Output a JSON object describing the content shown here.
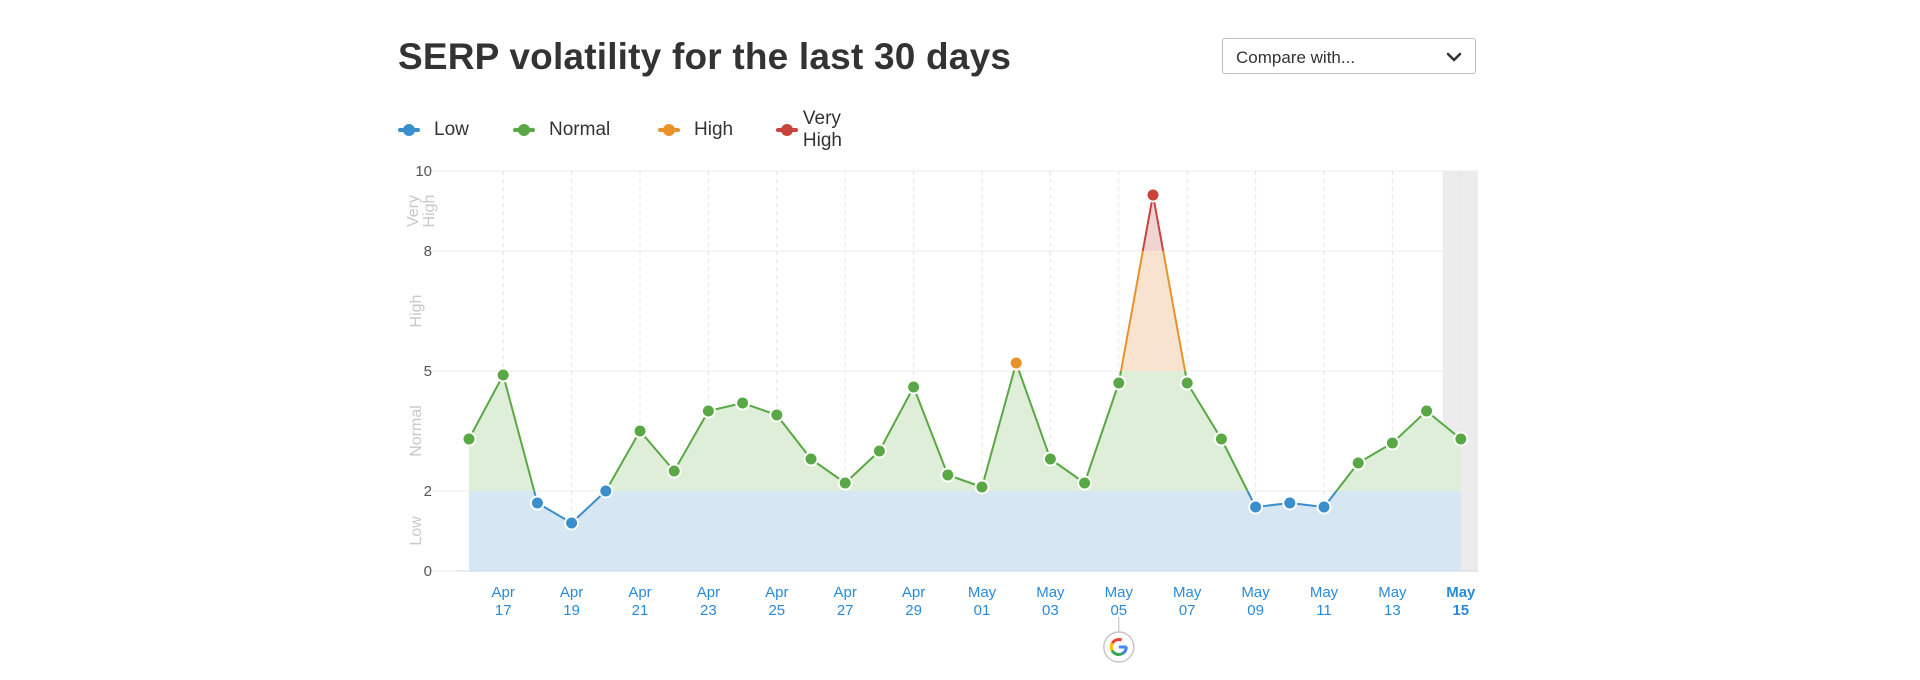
{
  "title": "SERP volatility for the last 30 days",
  "compare": {
    "label": "Compare with...",
    "icon": "chevron-down-icon"
  },
  "legend": [
    {
      "label": "Low",
      "color": "#3a8ecb"
    },
    {
      "label": "Normal",
      "color": "#5aa845"
    },
    {
      "label": "High",
      "color": "#e8922a"
    },
    {
      "label": "Very High",
      "color": "#c8433b"
    }
  ],
  "colors": {
    "low_fill": "#d6e7f3",
    "normal_fill": "#dfeed9",
    "high_fill": "#f8e3d0",
    "veryhigh_fill": "#f0d4d4",
    "low": "#3a8ecb",
    "normal": "#5aa845",
    "high": "#e8922a",
    "veryhigh": "#c8433b",
    "grid": "#ebebeb",
    "today_band": "#ececec"
  },
  "chart_data": {
    "type": "line",
    "y_ticks": [
      "0",
      "2",
      "5",
      "8",
      "10"
    ],
    "ylim": [
      0,
      10
    ],
    "band_labels": [
      "Low",
      "Normal",
      "High",
      "Very High"
    ],
    "x_tick_labels": [
      [
        "Apr",
        "17"
      ],
      [
        "Apr",
        "19"
      ],
      [
        "Apr",
        "21"
      ],
      [
        "Apr",
        "23"
      ],
      [
        "Apr",
        "25"
      ],
      [
        "Apr",
        "27"
      ],
      [
        "Apr",
        "29"
      ],
      [
        "May",
        "01"
      ],
      [
        "May",
        "03"
      ],
      [
        "May",
        "05"
      ],
      [
        "May",
        "07"
      ],
      [
        "May",
        "09"
      ],
      [
        "May",
        "11"
      ],
      [
        "May",
        "13"
      ],
      [
        "May",
        "15"
      ]
    ],
    "dates": [
      "Apr 16",
      "Apr 17",
      "Apr 18",
      "Apr 19",
      "Apr 20",
      "Apr 21",
      "Apr 22",
      "Apr 23",
      "Apr 24",
      "Apr 25",
      "Apr 26",
      "Apr 27",
      "Apr 28",
      "Apr 29",
      "Apr 30",
      "May 01",
      "May 02",
      "May 03",
      "May 04",
      "May 05",
      "May 06",
      "May 07",
      "May 08",
      "May 09",
      "May 10",
      "May 11",
      "May 12",
      "May 13",
      "May 14",
      "May 15"
    ],
    "values": [
      3.3,
      4.9,
      1.7,
      1.2,
      2.0,
      3.5,
      2.5,
      4.0,
      4.2,
      3.9,
      2.8,
      2.2,
      3.0,
      4.6,
      2.4,
      2.1,
      5.2,
      2.8,
      2.2,
      4.7,
      9.4,
      4.7,
      3.3,
      1.6,
      1.7,
      1.6,
      2.7,
      3.2,
      4.0,
      3.3
    ],
    "thresholds": {
      "low_max": 2,
      "normal_max": 5,
      "high_max": 8
    },
    "google_update_marker": "May 05"
  }
}
